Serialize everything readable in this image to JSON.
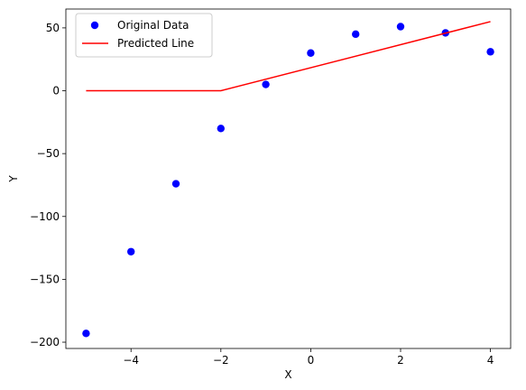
{
  "chart_data": {
    "type": "scatter",
    "xlabel": "X",
    "ylabel": "Y",
    "xlim": [
      -5.45,
      4.45
    ],
    "ylim": [
      -205,
      65
    ],
    "x_ticks": [
      -4,
      -2,
      0,
      2,
      4
    ],
    "y_ticks": [
      -200,
      -150,
      -100,
      -50,
      0,
      50
    ],
    "grid": false,
    "legend_position": "top-left",
    "series": [
      {
        "name": "Original Data",
        "kind": "scatter",
        "color": "#0000ff",
        "x": [
          -5,
          -4,
          -3,
          -2,
          -1,
          0,
          1,
          2,
          3,
          4
        ],
        "y": [
          -193,
          -128,
          -74,
          -30,
          5,
          30,
          45,
          51,
          46,
          31
        ]
      },
      {
        "name": "Predicted Line",
        "kind": "line",
        "color": "#ff0000",
        "x": [
          -5,
          -2,
          4
        ],
        "y": [
          0,
          0,
          55
        ]
      }
    ]
  }
}
